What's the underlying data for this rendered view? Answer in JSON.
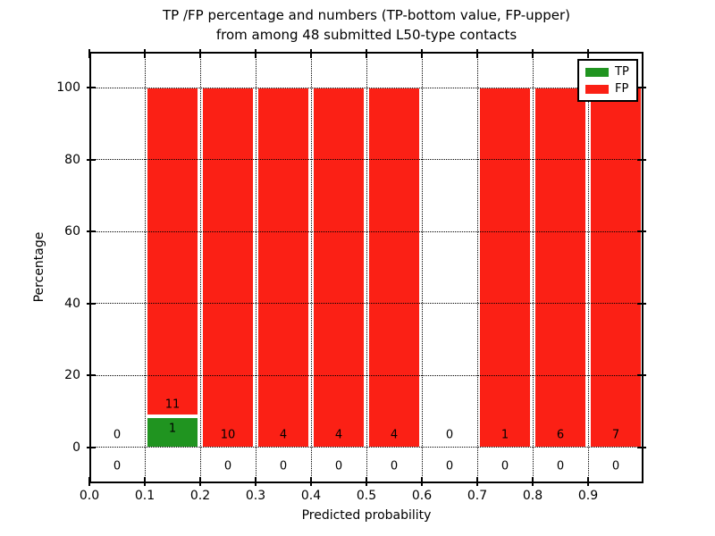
{
  "header": {
    "title_line1": "TP /FP percentage and numbers (TP-bottom value, FP-upper)",
    "title_line2": "from among 48 submitted L50-type contacts"
  },
  "chart_data": {
    "type": "bar",
    "stacked": true,
    "title": "TP /FP percentage and numbers (TP-bottom value, FP-upper) from among 48 submitted L50-type contacts",
    "xlabel": "Predicted probability",
    "ylabel": "Percentage",
    "xlim": [
      0.0,
      1.0
    ],
    "ylim": [
      -10,
      110
    ],
    "xticks": [
      "0.0",
      "0.1",
      "0.2",
      "0.3",
      "0.4",
      "0.5",
      "0.6",
      "0.7",
      "0.8",
      "0.9"
    ],
    "yticks": [
      0,
      20,
      40,
      60,
      80,
      100
    ],
    "grid": "dotted, both axes, drawn above bars",
    "legend_position": "upper right",
    "bin_width": 0.1,
    "bin_starts": [
      0.0,
      0.1,
      0.2,
      0.3,
      0.4,
      0.5,
      0.6,
      0.7,
      0.8,
      0.9
    ],
    "series": [
      {
        "name": "TP",
        "color": "#209420",
        "counts": [
          0,
          1,
          0,
          0,
          0,
          0,
          0,
          0,
          0,
          0
        ],
        "pct": [
          0,
          8.333,
          0,
          0,
          0,
          0,
          0,
          0,
          0,
          0
        ]
      },
      {
        "name": "FP",
        "color": "#fb2015",
        "counts": [
          0,
          11,
          10,
          4,
          4,
          4,
          0,
          1,
          6,
          7
        ],
        "pct": [
          0,
          91.667,
          100,
          100,
          100,
          100,
          0,
          100,
          100,
          100
        ]
      }
    ],
    "bar_edge_color": "#ffffff",
    "axis_color": "#000000",
    "background_color": "#ffffff"
  }
}
